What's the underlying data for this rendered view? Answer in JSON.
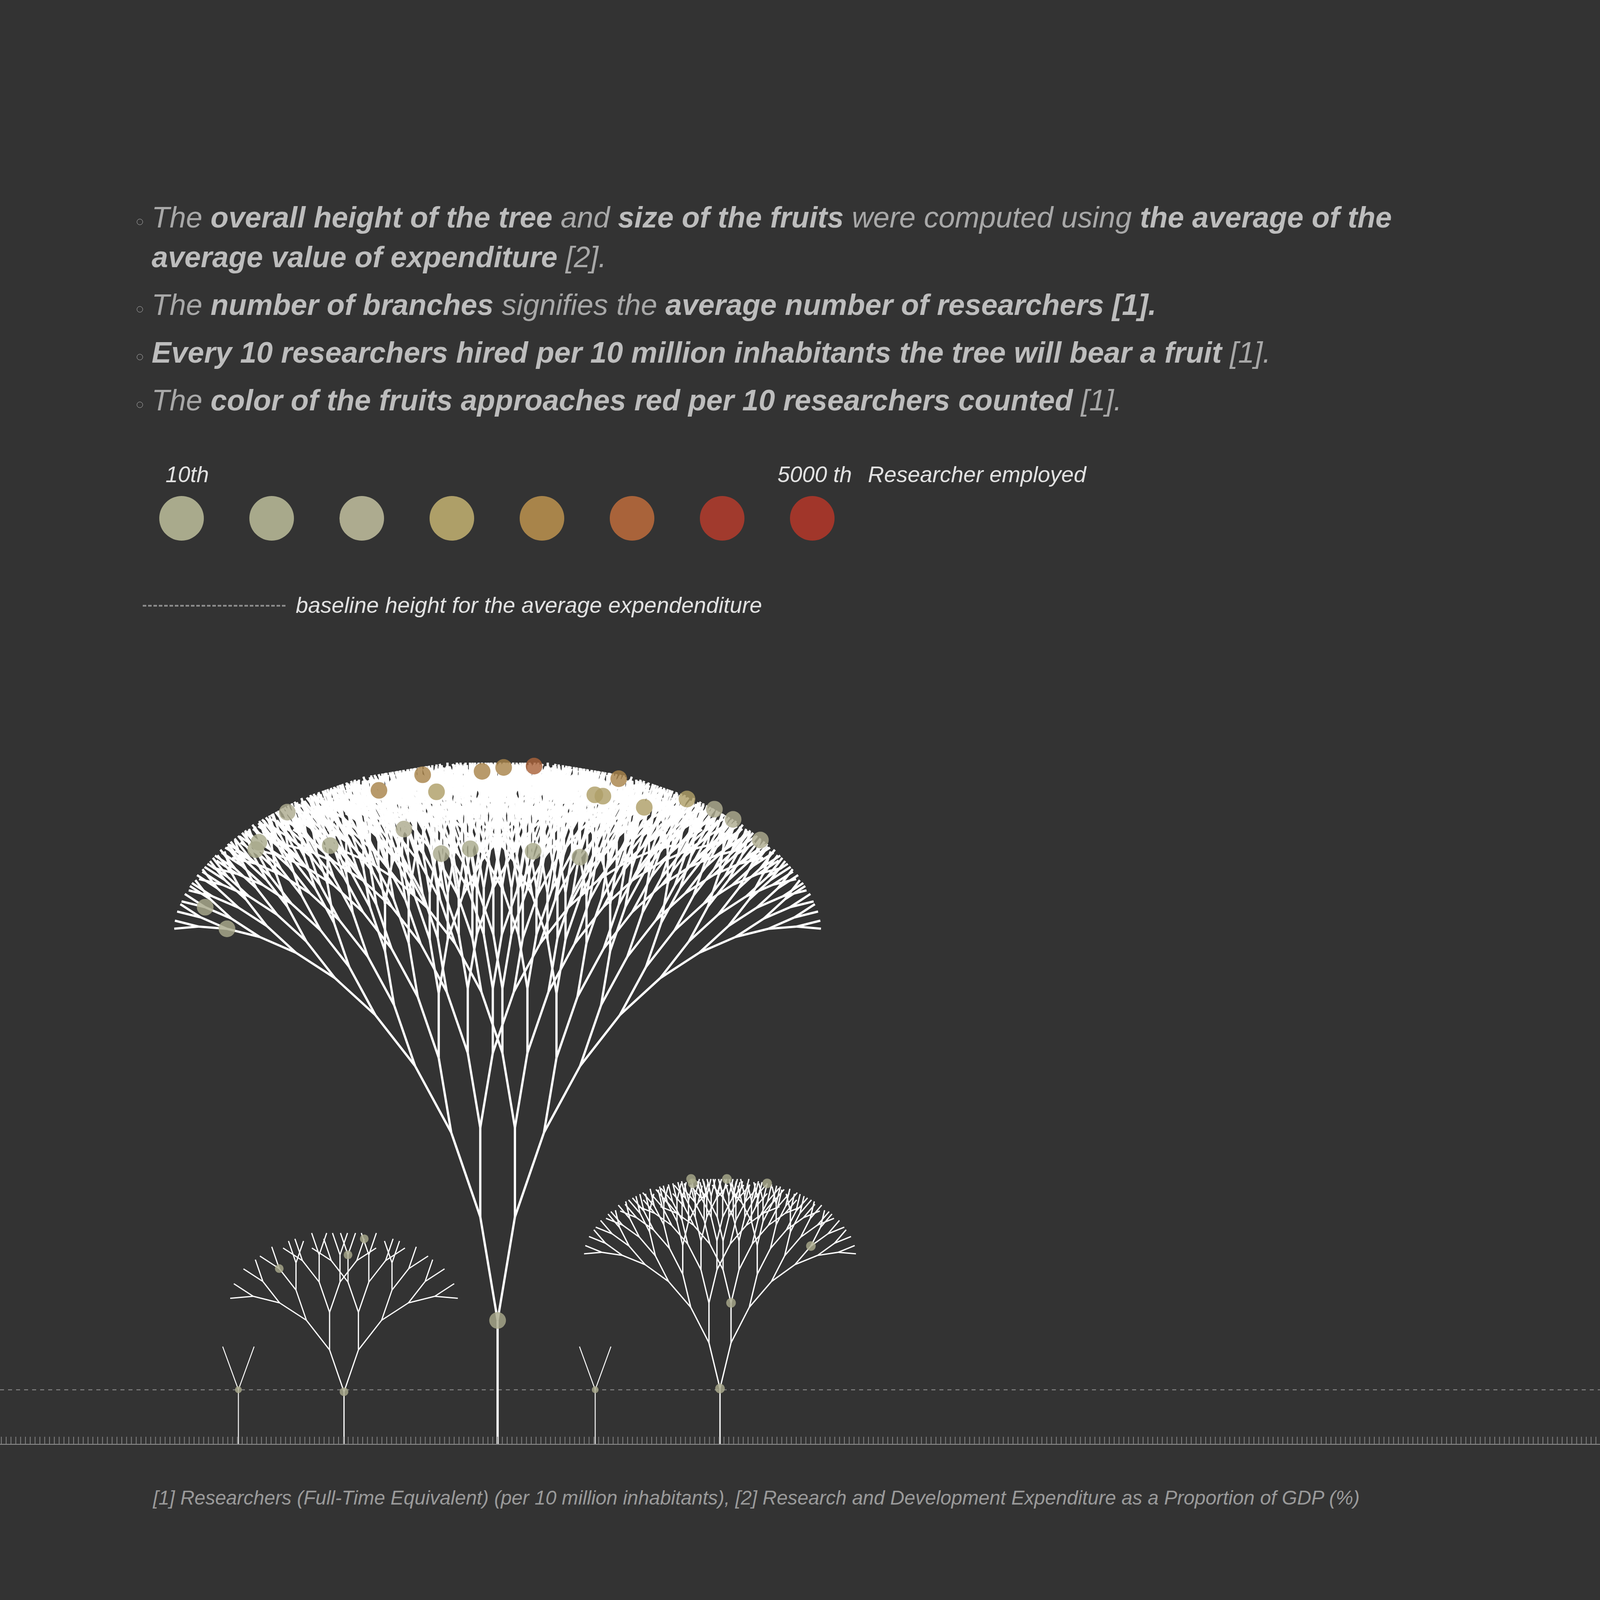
{
  "chart_data": {
    "type": "tree",
    "bullets": [
      [
        {
          "normal": "The "
        },
        {
          "bold": "overall height of the tree"
        },
        {
          "normal": " and "
        },
        {
          "bold": "size of the fruits"
        },
        {
          "normal": " were computed using "
        },
        {
          "bold": "the average of the average value of expenditure"
        },
        {
          "normal": " [2]."
        }
      ],
      [
        {
          "normal": "The "
        },
        {
          "bold": "number of branches"
        },
        {
          "normal": " signifies the "
        },
        {
          "bold": "average number of researchers"
        },
        {
          "bold": " [1]."
        }
      ],
      [
        {
          "bold": "Every 10 researchers hired per 10 million inhabitants the tree will bear a fruit"
        },
        {
          "normal": " [1]."
        }
      ],
      [
        {
          "normal": "The "
        },
        {
          "bold": "color of the fruits approaches red per 10 researchers counted"
        },
        {
          "normal": " [1]."
        }
      ]
    ],
    "color_scale": {
      "start_label": "10th",
      "end_label": "5000 th",
      "caption": "Researcher employed",
      "colors": [
        "#a9aa8c",
        "#a8a98b",
        "#adab8f",
        "#ae9f68",
        "#a8844a",
        "#a9633a",
        "#a13a2d",
        "#a1362a"
      ]
    },
    "baseline_label": "baseline height for the average expendenditure",
    "footnote": "[1] Researchers (Full-Time Equivalent) (per 10 million inhabitants), [2] Research and Development Expenditure as a Proportion of GDP (%)",
    "x": [
      14.9,
      21.5,
      31.1,
      37.2,
      45.0
    ],
    "values": [
      1.8,
      3.9,
      12.6,
      1.8,
      4.9
    ],
    "fruits": [
      1,
      4,
      26,
      1,
      7
    ],
    "baseline": 1,
    "xlim": [
      0,
      100
    ],
    "ylim": [
      0,
      14
    ],
    "tick_labels": false
  }
}
